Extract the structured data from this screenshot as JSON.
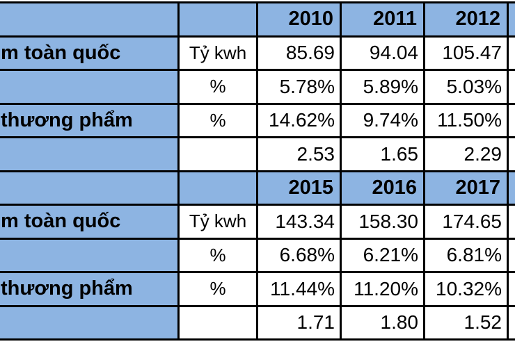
{
  "chart_data": {
    "type": "table",
    "sections": [
      {
        "years": [
          "2010",
          "2011",
          "2012"
        ],
        "rows": [
          {
            "label": "m toàn quốc",
            "unit": "Tỷ kwh",
            "values": [
              "85.69",
              "94.04",
              "105.47"
            ]
          },
          {
            "label": "",
            "unit": "%",
            "values": [
              "5.78%",
              "5.89%",
              "5.03%"
            ]
          },
          {
            "label": "thương phẩm",
            "unit": "%",
            "values": [
              "14.62%",
              "9.74%",
              "11.50%"
            ]
          },
          {
            "label": "",
            "unit": "",
            "values": [
              "2.53",
              "1.65",
              "2.29"
            ]
          }
        ]
      },
      {
        "years": [
          "2015",
          "2016",
          "2017"
        ],
        "rows": [
          {
            "label": "m toàn quốc",
            "unit": "Tỷ kwh",
            "values": [
              "143.34",
              "158.30",
              "174.65"
            ]
          },
          {
            "label": "",
            "unit": "%",
            "values": [
              "6.68%",
              "6.21%",
              "6.81%"
            ]
          },
          {
            "label": "thương phẩm",
            "unit": "%",
            "values": [
              "11.44%",
              "11.20%",
              "10.32%"
            ]
          },
          {
            "label": "",
            "unit": "",
            "values": [
              "1.71",
              "1.80",
              "1.52"
            ]
          }
        ]
      }
    ]
  },
  "colors": {
    "header_fill": "#8DB4E2",
    "cell_fill": "#FFFFFF",
    "border": "#000000",
    "text": "#000000"
  }
}
